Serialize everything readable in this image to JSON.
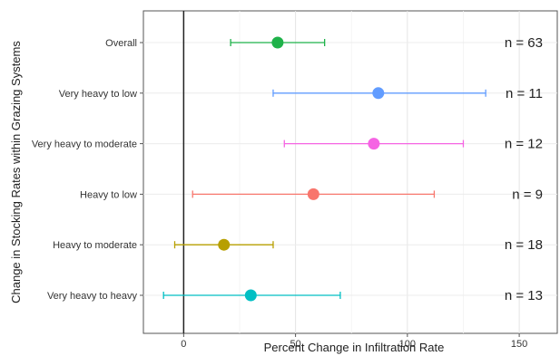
{
  "chart_data": {
    "type": "scatter",
    "subtype": "forest-plot-with-error-bars",
    "title": "",
    "xlabel": "Percent Change in Infiltration Rate",
    "ylabel": "Change in Stocking Rates within Grazing Systems",
    "xlim": [
      -18,
      167
    ],
    "xticks": [
      0,
      50,
      100,
      150
    ],
    "grid": true,
    "reference_line_x": 0,
    "legend": "none",
    "categories": [
      "Overall",
      "Very heavy to low",
      "Very heavy to moderate",
      "Heavy to low",
      "Heavy to moderate",
      "Very heavy to heavy"
    ],
    "series": [
      {
        "category": "Overall",
        "value": 42,
        "lower": 21,
        "upper": 63,
        "n_label": "n = 63",
        "color": "#1fb24a"
      },
      {
        "category": "Very heavy to low",
        "value": 87,
        "lower": 40,
        "upper": 135,
        "n_label": "n = 11",
        "color": "#619cff"
      },
      {
        "category": "Very heavy to moderate",
        "value": 85,
        "lower": 45,
        "upper": 125,
        "n_label": "n = 12",
        "color": "#f564e3"
      },
      {
        "category": "Heavy to low",
        "value": 58,
        "lower": 4,
        "upper": 112,
        "n_label": "n = 9",
        "color": "#f8766d"
      },
      {
        "category": "Heavy to moderate",
        "value": 18,
        "lower": -4,
        "upper": 40,
        "n_label": "n = 18",
        "color": "#b79f00"
      },
      {
        "category": "Very heavy to heavy",
        "value": 30,
        "lower": -9,
        "upper": 70,
        "n_label": "n = 13",
        "color": "#00bfc4"
      }
    ]
  }
}
